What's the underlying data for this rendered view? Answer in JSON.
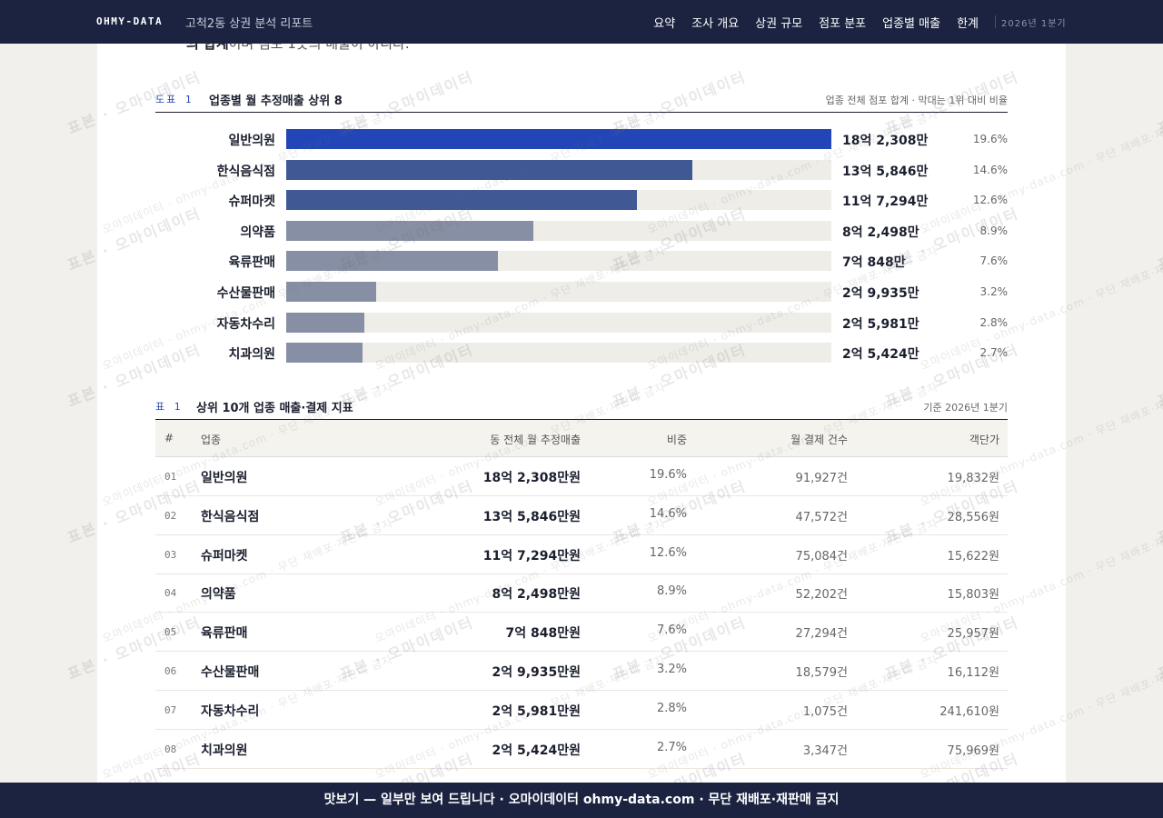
{
  "header": {
    "brand": "OHMY-DATA",
    "report_title": "고척2동 상권 분석 리포트",
    "nav": [
      "요약",
      "조사 개요",
      "상권 규모",
      "점포 분포",
      "업종별 매출",
      "한계"
    ],
    "period": "2026년 1분기"
  },
  "fragment": {
    "bold": "의 합계",
    "rest": "이며 점포 1곳의 매출이 아니다."
  },
  "figure1": {
    "number": "도표 1",
    "title": "업종별 월 추정매출 상위 8",
    "note": "업종 전체 점포 합계 · 막대는 1위 대비 비율"
  },
  "chart_data": {
    "type": "bar",
    "orientation": "horizontal",
    "title": "업종별 월 추정매출 상위 8",
    "categories": [
      "일반의원",
      "한식음식점",
      "슈퍼마켓",
      "의약품",
      "육류판매",
      "수산물판매",
      "자동차수리",
      "치과의원"
    ],
    "values": [
      182308,
      135846,
      117294,
      82498,
      70848,
      29935,
      25981,
      25424
    ],
    "unit": "만원",
    "value_labels": [
      "18억 2,308만",
      "13억 5,846만",
      "11억 7,294만",
      "8억 2,498만",
      "7억 848만",
      "2억 9,935만",
      "2억 5,981만",
      "2억 5,424만"
    ],
    "share_labels": [
      "19.6%",
      "14.6%",
      "12.6%",
      "8.9%",
      "7.6%",
      "3.2%",
      "2.8%",
      "2.7%"
    ],
    "colors": [
      "#2246b8",
      "#405894",
      "#405894",
      "#878fa4",
      "#878fa4",
      "#878fa4",
      "#878fa4",
      "#878fa4"
    ],
    "track_color": "#eeede8"
  },
  "table1": {
    "number": "표 1",
    "title": "상위 10개 업종 매출·결제 지표",
    "note": "기준 2026년 1분기",
    "columns": [
      "#",
      "업종",
      "동 전체 월 추정매출",
      "비중",
      "월 결제 건수",
      "객단가"
    ],
    "rows": [
      {
        "rank": "01",
        "name": "일반의원",
        "sales": "18억 2,308만원",
        "share": "19.6%",
        "count": "91,927건",
        "aov": "19,832원"
      },
      {
        "rank": "02",
        "name": "한식음식점",
        "sales": "13억 5,846만원",
        "share": "14.6%",
        "count": "47,572건",
        "aov": "28,556원"
      },
      {
        "rank": "03",
        "name": "슈퍼마켓",
        "sales": "11억 7,294만원",
        "share": "12.6%",
        "count": "75,084건",
        "aov": "15,622원"
      },
      {
        "rank": "04",
        "name": "의약품",
        "sales": "8억 2,498만원",
        "share": "8.9%",
        "count": "52,202건",
        "aov": "15,803원"
      },
      {
        "rank": "05",
        "name": "육류판매",
        "sales": "7억 848만원",
        "share": "7.6%",
        "count": "27,294건",
        "aov": "25,957원"
      },
      {
        "rank": "06",
        "name": "수산물판매",
        "sales": "2억 9,935만원",
        "share": "3.2%",
        "count": "18,579건",
        "aov": "16,112원"
      },
      {
        "rank": "07",
        "name": "자동차수리",
        "sales": "2억 5,981만원",
        "share": "2.8%",
        "count": "1,075건",
        "aov": "241,610원"
      },
      {
        "rank": "08",
        "name": "치과의원",
        "sales": "2억 5,424만원",
        "share": "2.7%",
        "count": "3,347건",
        "aov": "75,969원"
      }
    ]
  },
  "watermark": {
    "main": "표본 · 오마이데이터",
    "sub": "오마이데이터 · ohmy-data.com · 무단 재배포·재판매 금지"
  },
  "footer": {
    "text": "맛보기 — 일부만 보여 드립니다 · 오마이데이터 ohmy-data.com · 무단 재배포·재판매 금지"
  }
}
